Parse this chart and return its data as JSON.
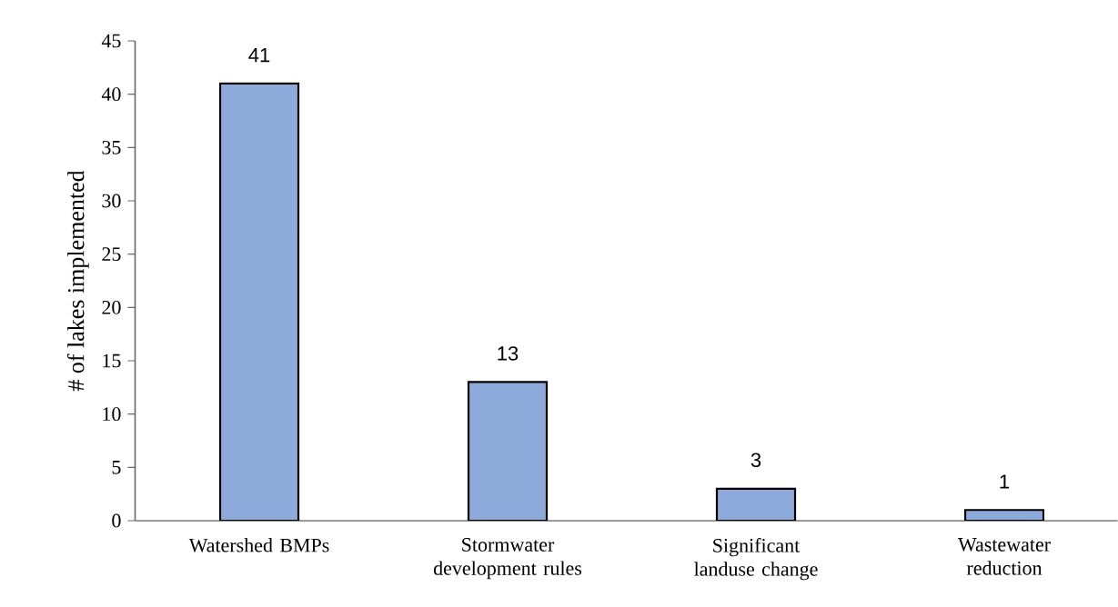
{
  "chart_data": {
    "type": "bar",
    "ylabel": "# of lakes implemented",
    "categories": [
      "Watershed BMPs",
      "Stormwater development rules",
      "Significant landuse change",
      "Wastewater reduction"
    ],
    "values": [
      41,
      13,
      3,
      1
    ],
    "color": "#8eaadb",
    "ylim": [
      0,
      45
    ],
    "yticks": [
      0,
      5,
      10,
      15,
      20,
      25,
      30,
      35,
      40,
      45
    ],
    "data_labels": true,
    "grid": false
  }
}
